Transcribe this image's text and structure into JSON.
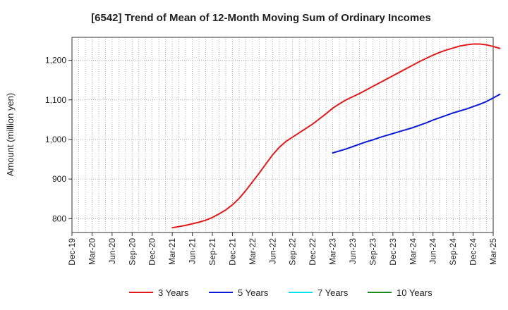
{
  "chart_data": {
    "type": "line",
    "title": "[6542]  Trend of Mean of 12-Month Moving Sum of Ordinary Incomes",
    "xlabel": "",
    "ylabel": "Amount (million yen)",
    "ylim": [
      765,
      1258
    ],
    "yticks": [
      800,
      900,
      1000,
      1100,
      1200
    ],
    "ytick_labels": [
      "800",
      "900",
      "1,000",
      "1,100",
      "1,200"
    ],
    "xtick_labels": [
      "Dec-19",
      "Mar-20",
      "Jun-20",
      "Sep-20",
      "Dec-20",
      "Mar-21",
      "Jun-21",
      "Sep-21",
      "Dec-21",
      "Mar-22",
      "Jun-22",
      "Sep-22",
      "Dec-22",
      "Mar-23",
      "Jun-23",
      "Sep-23",
      "Dec-23",
      "Mar-24",
      "Jun-24",
      "Sep-24",
      "Dec-24",
      "Mar-25"
    ],
    "grid": true,
    "legend_position": "bottom",
    "series": [
      {
        "name": "3 Years",
        "color": "#e31a1c",
        "start_index": 15,
        "values": [
          777,
          780,
          783,
          787,
          791,
          796,
          803,
          812,
          822,
          835,
          851,
          871,
          893,
          915,
          938,
          961,
          980,
          995,
          1006,
          1017,
          1028,
          1039,
          1052,
          1065,
          1079,
          1090,
          1100,
          1108,
          1116,
          1125,
          1134,
          1143,
          1152,
          1161,
          1170,
          1179,
          1188,
          1197,
          1205,
          1213,
          1220,
          1226,
          1231,
          1236,
          1239,
          1241,
          1241,
          1239,
          1235,
          1230
        ]
      },
      {
        "name": "5 Years",
        "color": "#0a1ad6",
        "start_index": 39,
        "values": [
          966,
          971,
          976,
          982,
          988,
          994,
          999,
          1005,
          1010,
          1015,
          1020,
          1025,
          1030,
          1036,
          1042,
          1049,
          1055,
          1061,
          1067,
          1072,
          1077,
          1083,
          1089,
          1096,
          1105,
          1114
        ]
      },
      {
        "name": "7 Years",
        "color": "#00e5ee",
        "start_index": 0,
        "values": []
      },
      {
        "name": "10 Years",
        "color": "#1a8a1a",
        "start_index": 0,
        "values": []
      }
    ]
  }
}
